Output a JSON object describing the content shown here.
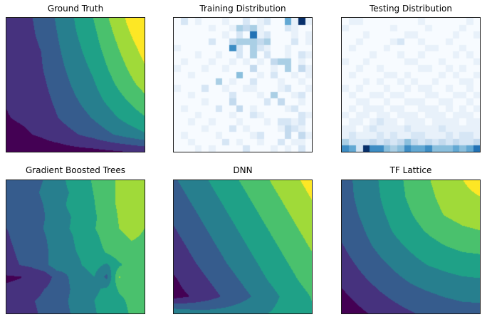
{
  "figure": {
    "background": "#ffffff",
    "axes_border_color": "#1a1a1a",
    "title_color": "#000000",
    "rows": 2,
    "cols": 3
  },
  "colormaps": {
    "viridis_bands": [
      "#440154",
      "#46327e",
      "#365c8d",
      "#277f8e",
      "#1fa187",
      "#4ac16d",
      "#a0da39",
      "#fde725"
    ],
    "blues_scale": [
      "#f7fbff",
      "#e8f1fa",
      "#d6e6f5",
      "#c3daee",
      "#aacfe5",
      "#8abfdd",
      "#62a8d3",
      "#3d8dc4",
      "#2272b5",
      "#08306b"
    ]
  },
  "chart_data": [
    {
      "title": "Ground Truth",
      "type": "heatmap",
      "subtype": "filled-contour",
      "colormap_name": "viridis (8 discrete bands)",
      "palette": "viridis_bands",
      "x_range": [
        0,
        1
      ],
      "y_range": [
        0,
        1
      ],
      "grid_order": "rows top-to-bottom",
      "grid": [
        [
          0.19,
          0.22,
          0.28,
          0.4,
          0.51,
          0.62,
          0.76,
          0.89,
          1.0
        ],
        [
          0.18,
          0.21,
          0.27,
          0.38,
          0.49,
          0.59,
          0.72,
          0.85,
          0.96
        ],
        [
          0.17,
          0.2,
          0.25,
          0.36,
          0.46,
          0.56,
          0.68,
          0.8,
          0.91
        ],
        [
          0.16,
          0.19,
          0.24,
          0.34,
          0.43,
          0.52,
          0.64,
          0.75,
          0.86
        ],
        [
          0.15,
          0.17,
          0.22,
          0.31,
          0.4,
          0.48,
          0.59,
          0.7,
          0.79
        ],
        [
          0.13,
          0.16,
          0.2,
          0.28,
          0.36,
          0.44,
          0.53,
          0.62,
          0.71
        ],
        [
          0.12,
          0.14,
          0.17,
          0.25,
          0.31,
          0.38,
          0.46,
          0.54,
          0.61
        ],
        [
          0.09,
          0.11,
          0.14,
          0.19,
          0.24,
          0.29,
          0.36,
          0.42,
          0.48
        ],
        [
          0.03,
          0.04,
          0.05,
          0.06,
          0.08,
          0.09,
          0.11,
          0.13,
          0.15
        ]
      ]
    },
    {
      "title": "Training Distribution",
      "type": "heatmap",
      "subtype": "cell-histogram-2d",
      "colormap_name": "Blues (0 = white, 9 = dark navy)",
      "palette": "blues_scale",
      "x_range": [
        0,
        1
      ],
      "y_range": [
        0,
        1
      ],
      "grid_order": "rows top-to-bottom, one digit per cell",
      "cells": [
        "02010001002012006191",
        "00000100143410002100",
        "00000001020812000101",
        "00000200344434000201",
        "10000000720421001000",
        "00010010020402001021",
        "01000100101010344010",
        "10001001000300104031",
        "00100000050010200101",
        "00000040100200010010",
        "10002001001100012001",
        "00100000200010400120",
        "00001000300002030010",
        "01000020030100001200",
        "00010000100210000021",
        "00100100010001022120",
        "00001000201000013210",
        "01000010000120003031",
        "00100002010010020110",
        "00010100002000101020"
      ]
    },
    {
      "title": "Testing Distribution",
      "type": "heatmap",
      "subtype": "cell-histogram-2d",
      "colormap_name": "Blues (0 = white, 9 = dark navy)",
      "palette": "blues_scale",
      "x_range": [
        0,
        1
      ],
      "y_range": [
        0,
        1
      ],
      "grid_order": "rows top-to-bottom, one digit per cell",
      "cells": [
        "01100000000100000010",
        "10000001000010000100",
        "00010000011000001001",
        "00100001200100010000",
        "01000010000011000100",
        "00001000100100001010",
        "10010000011000100001",
        "00100100000110010100",
        "01000011010000101001",
        "00010100101001000110",
        "10100010010110010010",
        "01001101100011001101",
        "00110010011100110010",
        "01011101100111010101",
        "10110110111011101110",
        "01101211011101111011",
        "11012111121111211111",
        "12111212112211121221",
        "42223232353232323223",
        "76297754576675556568"
      ]
    },
    {
      "title": "Gradient Boosted Trees",
      "type": "heatmap",
      "subtype": "filled-contour",
      "colormap_name": "viridis (8 discrete bands, shared scale)",
      "palette": "viridis_bands",
      "x_range": [
        0,
        1
      ],
      "y_range": [
        0,
        1
      ],
      "grid_order": "rows top-to-bottom",
      "grid": [
        [
          0.27,
          0.29,
          0.33,
          0.38,
          0.45,
          0.52,
          0.58,
          0.64,
          0.7,
          0.77,
          0.78,
          0.76
        ],
        [
          0.26,
          0.3,
          0.34,
          0.4,
          0.46,
          0.5,
          0.57,
          0.63,
          0.69,
          0.78,
          0.77,
          0.76
        ],
        [
          0.26,
          0.29,
          0.32,
          0.38,
          0.44,
          0.52,
          0.55,
          0.62,
          0.7,
          0.77,
          0.78,
          0.77
        ],
        [
          0.25,
          0.28,
          0.33,
          0.37,
          0.45,
          0.49,
          0.56,
          0.61,
          0.68,
          0.76,
          0.78,
          0.76
        ],
        [
          0.25,
          0.27,
          0.31,
          0.38,
          0.42,
          0.5,
          0.54,
          0.62,
          0.67,
          0.75,
          0.77,
          0.75
        ],
        [
          0.24,
          0.27,
          0.32,
          0.36,
          0.43,
          0.47,
          0.55,
          0.59,
          0.66,
          0.73,
          0.75,
          0.74
        ],
        [
          0.23,
          0.26,
          0.29,
          0.35,
          0.42,
          0.47,
          0.52,
          0.58,
          0.63,
          0.7,
          0.73,
          0.72
        ],
        [
          0.22,
          0.25,
          0.28,
          0.34,
          0.44,
          0.42,
          0.5,
          0.55,
          0.48,
          0.6,
          0.7,
          0.71
        ],
        [
          0.11,
          0.12,
          0.14,
          0.17,
          0.3,
          0.38,
          0.45,
          0.5,
          0.34,
          0.76,
          0.68,
          0.69
        ],
        [
          0.14,
          0.15,
          0.19,
          0.25,
          0.31,
          0.37,
          0.43,
          0.48,
          0.52,
          0.64,
          0.66,
          0.66
        ],
        [
          0.21,
          0.22,
          0.24,
          0.28,
          0.33,
          0.38,
          0.44,
          0.5,
          0.54,
          0.6,
          0.65,
          0.66
        ],
        [
          0.2,
          0.21,
          0.23,
          0.27,
          0.32,
          0.37,
          0.43,
          0.49,
          0.54,
          0.58,
          0.64,
          0.66
        ]
      ]
    },
    {
      "title": "DNN",
      "type": "heatmap",
      "subtype": "filled-contour",
      "colormap_name": "viridis (8 discrete bands, shared scale)",
      "palette": "viridis_bands",
      "x_range": [
        0,
        1
      ],
      "y_range": [
        0,
        1
      ],
      "grid_order": "rows top-to-bottom",
      "grid": [
        [
          0.36,
          0.43,
          0.5,
          0.57,
          0.64,
          0.71,
          0.78,
          0.85,
          0.92
        ],
        [
          0.32,
          0.39,
          0.46,
          0.53,
          0.6,
          0.67,
          0.74,
          0.81,
          0.88
        ],
        [
          0.28,
          0.35,
          0.42,
          0.49,
          0.56,
          0.63,
          0.7,
          0.77,
          0.84
        ],
        [
          0.24,
          0.31,
          0.38,
          0.45,
          0.52,
          0.59,
          0.66,
          0.73,
          0.8
        ],
        [
          0.2,
          0.27,
          0.34,
          0.41,
          0.48,
          0.55,
          0.62,
          0.69,
          0.76
        ],
        [
          0.16,
          0.23,
          0.3,
          0.37,
          0.44,
          0.51,
          0.58,
          0.65,
          0.72
        ],
        [
          0.11,
          0.18,
          0.25,
          0.32,
          0.39,
          0.47,
          0.54,
          0.61,
          0.68
        ],
        [
          0.08,
          0.13,
          0.2,
          0.27,
          0.34,
          0.41,
          0.49,
          0.56,
          0.63
        ],
        [
          0.48,
          0.44,
          0.42,
          0.43,
          0.45,
          0.48,
          0.52,
          0.56,
          0.61
        ]
      ]
    },
    {
      "title": "TF Lattice",
      "type": "heatmap",
      "subtype": "filled-contour",
      "colormap_name": "viridis (8 discrete bands, shared scale)",
      "palette": "viridis_bands",
      "x_range": [
        0,
        1
      ],
      "y_range": [
        0,
        1
      ],
      "grid_order": "rows top-to-bottom",
      "grid": [
        [
          0.32,
          0.41,
          0.49,
          0.58,
          0.66,
          0.74,
          0.81,
          0.87,
          0.96
        ],
        [
          0.32,
          0.4,
          0.48,
          0.57,
          0.65,
          0.72,
          0.79,
          0.82,
          0.87
        ],
        [
          0.3,
          0.38,
          0.46,
          0.54,
          0.62,
          0.69,
          0.76,
          0.8,
          0.82
        ],
        [
          0.28,
          0.35,
          0.43,
          0.51,
          0.58,
          0.64,
          0.69,
          0.73,
          0.75
        ],
        [
          0.24,
          0.32,
          0.39,
          0.46,
          0.52,
          0.58,
          0.62,
          0.65,
          0.66
        ],
        [
          0.2,
          0.27,
          0.34,
          0.4,
          0.46,
          0.51,
          0.54,
          0.57,
          0.58
        ],
        [
          0.15,
          0.22,
          0.28,
          0.34,
          0.39,
          0.43,
          0.46,
          0.48,
          0.49
        ],
        [
          0.1,
          0.16,
          0.22,
          0.27,
          0.32,
          0.35,
          0.38,
          0.4,
          0.41
        ],
        [
          0.04,
          0.1,
          0.15,
          0.2,
          0.24,
          0.28,
          0.3,
          0.32,
          0.32
        ]
      ]
    }
  ]
}
